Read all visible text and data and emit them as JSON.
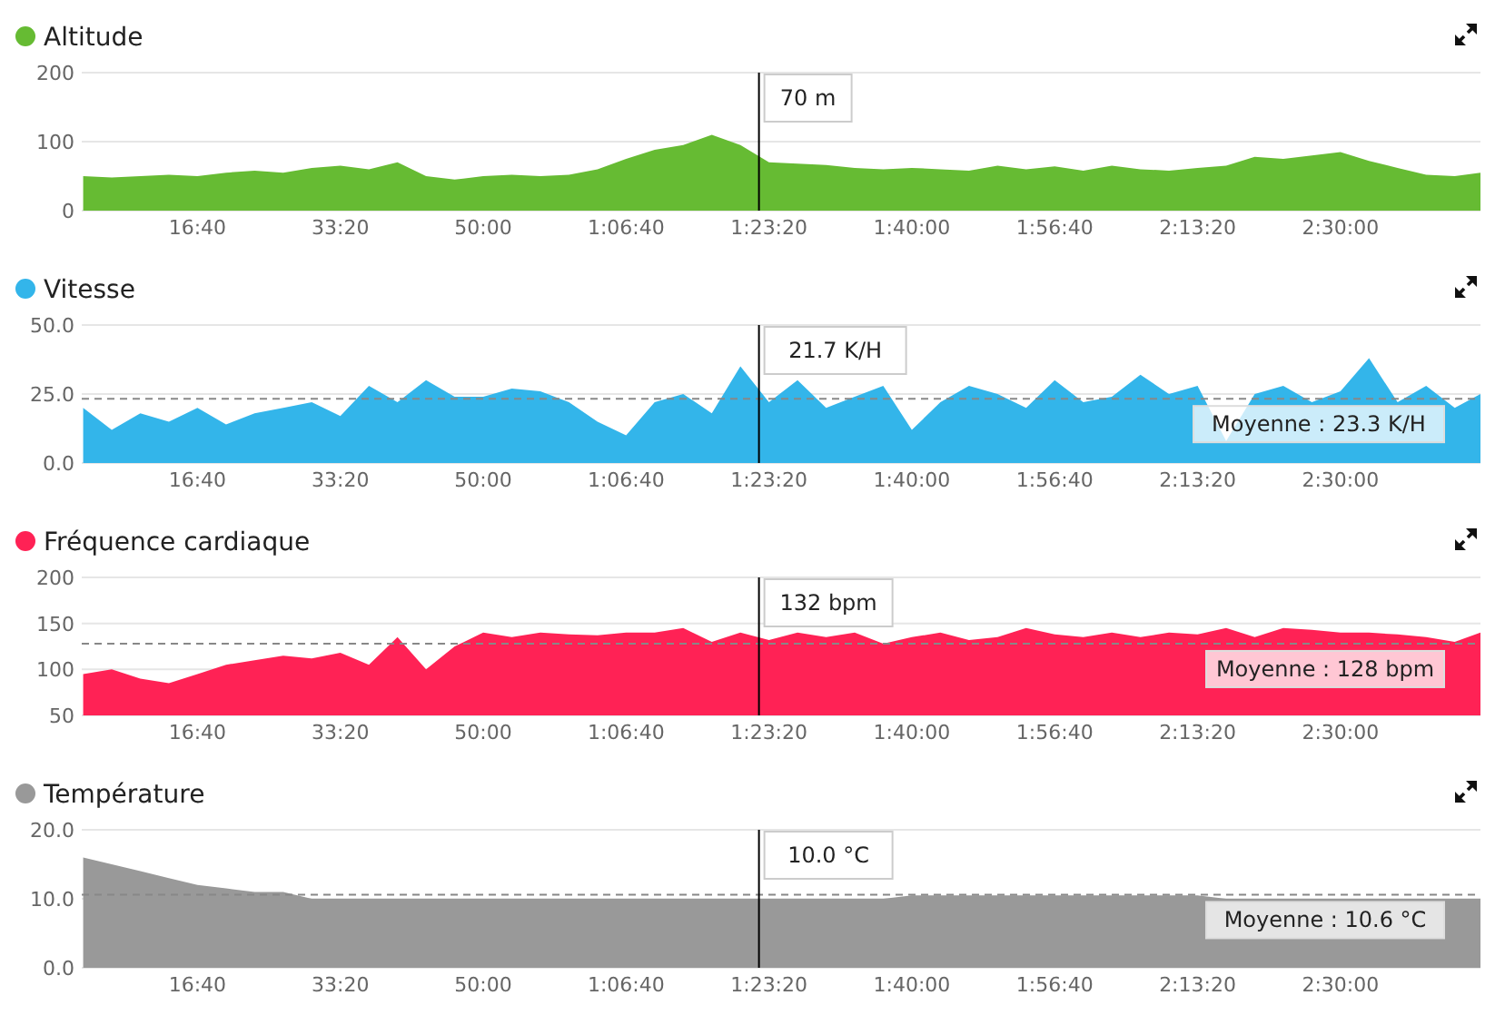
{
  "chart_data": [
    {
      "type": "area",
      "x": [
        200,
        400,
        600,
        800,
        1000,
        1200,
        1400,
        1600,
        1800,
        2000,
        2200,
        2400,
        2600,
        2800,
        3000,
        3200,
        3400,
        3600,
        3800,
        4000,
        4200,
        4400,
        4600,
        4800,
        5000,
        5200,
        5400,
        5600,
        5800,
        6000,
        6200,
        6400,
        6600,
        6800,
        7000,
        7200,
        7400,
        7600,
        7800,
        8000,
        8200,
        8400,
        8600,
        8800,
        9000,
        9200,
        9400,
        9600,
        9800,
        9980
      ],
      "xlim": [
        190,
        9980
      ],
      "xticks": [
        {
          "value": 1000,
          "label": "16:40"
        },
        {
          "value": 2000,
          "label": "33:20"
        },
        {
          "value": 3000,
          "label": "50:00"
        },
        {
          "value": 4000,
          "label": "1:06:40"
        },
        {
          "value": 5000,
          "label": "1:23:20"
        },
        {
          "value": 6000,
          "label": "1:40:00"
        },
        {
          "value": 7000,
          "label": "1:56:40"
        },
        {
          "value": 8000,
          "label": "2:13:20"
        },
        {
          "value": 9000,
          "label": "2:30:00"
        }
      ],
      "ylim": [
        0,
        200
      ],
      "yticks": [
        0,
        100,
        200
      ],
      "grid": "y",
      "legend": "top left",
      "series": [
        {
          "name": "Altitude",
          "color": "#66bb33",
          "values": [
            50,
            48,
            50,
            52,
            50,
            55,
            58,
            55,
            62,
            65,
            60,
            70,
            50,
            45,
            50,
            52,
            50,
            52,
            60,
            75,
            88,
            95,
            110,
            95,
            70,
            68,
            66,
            62,
            60,
            62,
            60,
            58,
            65,
            60,
            64,
            58,
            65,
            60,
            58,
            62,
            65,
            78,
            75,
            80,
            85,
            72,
            62,
            52,
            50,
            55
          ]
        }
      ],
      "ref_lines": [
        {
          "axis": "x",
          "value": 4930,
          "color": "#000000",
          "line_style": "solid"
        }
      ],
      "annotations": [
        "70 m"
      ]
    },
    {
      "type": "area",
      "x": [
        200,
        400,
        600,
        800,
        1000,
        1200,
        1400,
        1600,
        1800,
        2000,
        2200,
        2400,
        2600,
        2800,
        3000,
        3200,
        3400,
        3600,
        3800,
        4000,
        4200,
        4400,
        4600,
        4800,
        5000,
        5200,
        5400,
        5600,
        5800,
        6000,
        6200,
        6400,
        6600,
        6800,
        7000,
        7200,
        7400,
        7600,
        7800,
        8000,
        8200,
        8400,
        8600,
        8800,
        9000,
        9200,
        9400,
        9600,
        9800,
        9980
      ],
      "xlim": [
        190,
        9980
      ],
      "xticks": [
        {
          "value": 1000,
          "label": "16:40"
        },
        {
          "value": 2000,
          "label": "33:20"
        },
        {
          "value": 3000,
          "label": "50:00"
        },
        {
          "value": 4000,
          "label": "1:06:40"
        },
        {
          "value": 5000,
          "label": "1:23:20"
        },
        {
          "value": 6000,
          "label": "1:40:00"
        },
        {
          "value": 7000,
          "label": "1:56:40"
        },
        {
          "value": 8000,
          "label": "2:13:20"
        },
        {
          "value": 9000,
          "label": "2:30:00"
        }
      ],
      "ylim": [
        0,
        50
      ],
      "yticks": [
        {
          "value": 0,
          "label": "0.0"
        },
        {
          "value": 25,
          "label": "25.0"
        },
        {
          "value": 50,
          "label": "50.0"
        }
      ],
      "grid": "y",
      "legend": "top left",
      "series": [
        {
          "name": "Vitesse",
          "color": "#33b5ea",
          "values": [
            20,
            12,
            18,
            15,
            20,
            14,
            18,
            20,
            22,
            17,
            28,
            22,
            30,
            24,
            24,
            27,
            26,
            22,
            15,
            10,
            22,
            25,
            18,
            35,
            22,
            30,
            20,
            24,
            28,
            12,
            22,
            28,
            25,
            20,
            30,
            22,
            24,
            32,
            25,
            28,
            8,
            25,
            28,
            22,
            26,
            38,
            22,
            28,
            20,
            25
          ]
        }
      ],
      "ref_lines": [
        {
          "axis": "y",
          "value": 23.3,
          "label": "Moyenne : 23.3 K/H",
          "color": "#888888",
          "line_style": "dashed"
        },
        {
          "axis": "x",
          "value": 4930,
          "color": "#000000",
          "line_style": "solid"
        }
      ],
      "annotations": [
        "21.7 K/H"
      ]
    },
    {
      "type": "area",
      "x": [
        200,
        400,
        600,
        800,
        1000,
        1200,
        1400,
        1600,
        1800,
        2000,
        2200,
        2400,
        2600,
        2800,
        3000,
        3200,
        3400,
        3600,
        3800,
        4000,
        4200,
        4400,
        4600,
        4800,
        5000,
        5200,
        5400,
        5600,
        5800,
        6000,
        6200,
        6400,
        6600,
        6800,
        7000,
        7200,
        7400,
        7600,
        7800,
        8000,
        8200,
        8400,
        8600,
        8800,
        9000,
        9200,
        9400,
        9600,
        9800,
        9980
      ],
      "xlim": [
        190,
        9980
      ],
      "xticks": [
        {
          "value": 1000,
          "label": "16:40"
        },
        {
          "value": 2000,
          "label": "33:20"
        },
        {
          "value": 3000,
          "label": "50:00"
        },
        {
          "value": 4000,
          "label": "1:06:40"
        },
        {
          "value": 5000,
          "label": "1:23:20"
        },
        {
          "value": 6000,
          "label": "1:40:00"
        },
        {
          "value": 7000,
          "label": "1:56:40"
        },
        {
          "value": 8000,
          "label": "2:13:20"
        },
        {
          "value": 9000,
          "label": "2:30:00"
        }
      ],
      "ylim": [
        50,
        200
      ],
      "yticks": [
        50,
        100,
        150,
        200
      ],
      "grid": "y",
      "legend": "top left",
      "series": [
        {
          "name": "Fréquence cardiaque",
          "color": "#ff2255",
          "values": [
            95,
            100,
            90,
            85,
            95,
            105,
            110,
            115,
            112,
            118,
            105,
            135,
            100,
            125,
            140,
            135,
            140,
            138,
            137,
            140,
            140,
            145,
            130,
            140,
            132,
            140,
            135,
            140,
            128,
            135,
            140,
            132,
            135,
            145,
            138,
            135,
            140,
            135,
            140,
            138,
            145,
            135,
            145,
            143,
            140,
            140,
            138,
            135,
            130,
            140
          ]
        }
      ],
      "ref_lines": [
        {
          "axis": "y",
          "value": 128,
          "label": "Moyenne : 128 bpm",
          "color": "#888888",
          "line_style": "dashed"
        },
        {
          "axis": "x",
          "value": 4930,
          "color": "#000000",
          "line_style": "solid"
        }
      ],
      "annotations": [
        "132 bpm"
      ]
    },
    {
      "type": "area",
      "x": [
        200,
        400,
        600,
        800,
        1000,
        1200,
        1400,
        1600,
        1800,
        2000,
        2200,
        2400,
        2600,
        2800,
        3000,
        3200,
        3400,
        3600,
        3800,
        4000,
        4200,
        4400,
        4600,
        4800,
        5000,
        5200,
        5400,
        5600,
        5800,
        6000,
        6200,
        6400,
        6600,
        6800,
        7000,
        7200,
        7400,
        7600,
        7800,
        8000,
        8200,
        8400,
        8600,
        8800,
        9000,
        9200,
        9400,
        9600,
        9800,
        9980
      ],
      "xlim": [
        190,
        9980
      ],
      "xticks": [
        {
          "value": 1000,
          "label": "16:40"
        },
        {
          "value": 2000,
          "label": "33:20"
        },
        {
          "value": 3000,
          "label": "50:00"
        },
        {
          "value": 4000,
          "label": "1:06:40"
        },
        {
          "value": 5000,
          "label": "1:23:20"
        },
        {
          "value": 6000,
          "label": "1:40:00"
        },
        {
          "value": 7000,
          "label": "1:56:40"
        },
        {
          "value": 8000,
          "label": "2:13:20"
        },
        {
          "value": 9000,
          "label": "2:30:00"
        }
      ],
      "ylim": [
        0,
        20
      ],
      "yticks": [
        {
          "value": 0,
          "label": "0.0"
        },
        {
          "value": 10,
          "label": "10.0"
        },
        {
          "value": 20,
          "label": "20.0"
        }
      ],
      "grid": "y",
      "legend": "top left",
      "series": [
        {
          "name": "Température",
          "color": "#999999",
          "values": [
            16,
            15,
            14,
            13,
            12,
            11.5,
            11,
            11,
            10,
            10,
            10,
            10,
            10,
            10,
            10,
            10,
            10,
            10,
            10,
            10,
            10,
            10,
            10,
            10,
            10,
            10,
            10,
            10,
            10,
            10.5,
            10.5,
            10.5,
            10.5,
            10.5,
            10.5,
            10.5,
            10.5,
            10.5,
            10.5,
            10.5,
            10,
            10,
            10,
            10,
            10,
            10,
            10,
            10,
            10,
            10
          ]
        }
      ],
      "ref_lines": [
        {
          "axis": "y",
          "value": 10.6,
          "label": "Moyenne : 10.6 °C",
          "color": "#888888",
          "line_style": "dashed"
        },
        {
          "axis": "x",
          "value": 4930,
          "color": "#000000",
          "line_style": "solid"
        }
      ],
      "annotations": [
        "10.0 °C"
      ]
    }
  ]
}
